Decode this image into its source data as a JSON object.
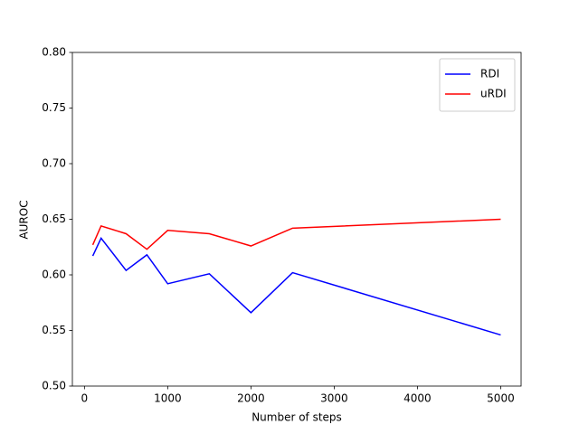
{
  "chart_data": {
    "type": "line",
    "x_label": "Number of steps",
    "y_label": "AUROC",
    "x": [
      100,
      200,
      500,
      750,
      1000,
      1500,
      2000,
      2500,
      5000
    ],
    "series": [
      {
        "name": "RDI",
        "color": "#0000ff",
        "values": [
          0.617,
          0.633,
          0.604,
          0.618,
          0.592,
          0.601,
          0.566,
          0.602,
          0.546
        ]
      },
      {
        "name": "uRDI",
        "color": "#ff0000",
        "values": [
          0.627,
          0.644,
          0.637,
          0.623,
          0.64,
          0.637,
          0.626,
          0.642,
          0.65
        ]
      }
    ],
    "xlim": [
      -145,
      5245
    ],
    "xticks": [
      0,
      1000,
      2000,
      3000,
      4000,
      5000
    ],
    "ylim": [
      0.5,
      0.8
    ],
    "yticks": [
      {
        "value": 0.5,
        "label": "0.50"
      },
      0.55,
      {
        "value": 0.6,
        "label": "0.60"
      },
      0.65,
      {
        "value": 0.7,
        "label": "0.70"
      },
      0.75,
      {
        "value": 0.8,
        "label": "0.80"
      }
    ],
    "legend": "upper right"
  }
}
